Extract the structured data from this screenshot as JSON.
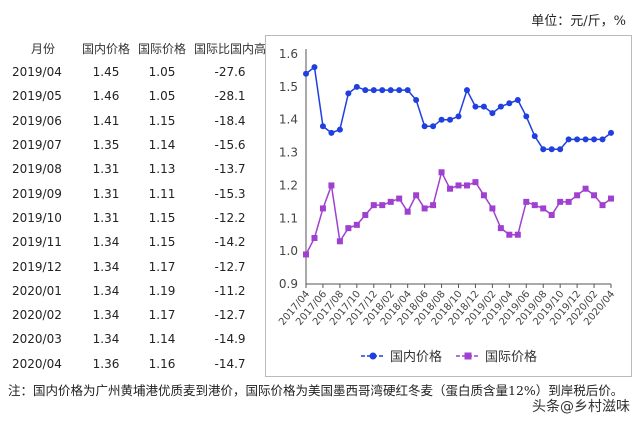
{
  "unit": "单位：元/斤，%",
  "table": {
    "headers": [
      "月份",
      "国内价格",
      "国际价格",
      "国际比国内高"
    ],
    "rows": [
      [
        "2019/04",
        "1.45",
        "1.05",
        "-27.6"
      ],
      [
        "2019/05",
        "1.46",
        "1.05",
        "-28.1"
      ],
      [
        "2019/06",
        "1.41",
        "1.15",
        "-18.4"
      ],
      [
        "2019/07",
        "1.35",
        "1.14",
        "-15.6"
      ],
      [
        "2019/08",
        "1.31",
        "1.13",
        "-13.7"
      ],
      [
        "2019/09",
        "1.31",
        "1.11",
        "-15.3"
      ],
      [
        "2019/10",
        "1.31",
        "1.15",
        "-12.2"
      ],
      [
        "2019/11",
        "1.34",
        "1.15",
        "-14.2"
      ],
      [
        "2019/12",
        "1.34",
        "1.17",
        "-12.7"
      ],
      [
        "2020/01",
        "1.34",
        "1.19",
        "-11.2"
      ],
      [
        "2020/02",
        "1.34",
        "1.17",
        "-12.7"
      ],
      [
        "2020/03",
        "1.34",
        "1.14",
        "-14.9"
      ],
      [
        "2020/04",
        "1.36",
        "1.16",
        "-14.7"
      ]
    ]
  },
  "chart_data": {
    "type": "line",
    "ylim": [
      0.9,
      1.6
    ],
    "yticks": [
      "0.9",
      "1.0",
      "1.1",
      "1.2",
      "1.3",
      "1.4",
      "1.5",
      "1.6"
    ],
    "xticklabels": [
      "2017/04",
      "2017/06",
      "2017/08",
      "2017/10",
      "2017/12",
      "2018/02",
      "2018/04",
      "2018/06",
      "2018/08",
      "2018/10",
      "2018/12",
      "2019/02",
      "2019/04",
      "2019/06",
      "2019/08",
      "2019/10",
      "2019/12",
      "2020/02",
      "2020/04"
    ],
    "legend": "bottom",
    "series": [
      {
        "name": "国内价格",
        "color": "#1f3fe0",
        "marker": "circle",
        "values": [
          1.54,
          1.56,
          1.38,
          1.36,
          1.37,
          1.48,
          1.5,
          1.49,
          1.49,
          1.49,
          1.49,
          1.49,
          1.49,
          1.46,
          1.38,
          1.38,
          1.4,
          1.4,
          1.41,
          1.49,
          1.44,
          1.44,
          1.42,
          1.44,
          1.45,
          1.46,
          1.41,
          1.35,
          1.31,
          1.31,
          1.31,
          1.34,
          1.34,
          1.34,
          1.34,
          1.34,
          1.36
        ]
      },
      {
        "name": "国际价格",
        "color": "#a040d0",
        "marker": "square",
        "values": [
          0.99,
          1.04,
          1.13,
          1.2,
          1.03,
          1.07,
          1.08,
          1.11,
          1.14,
          1.14,
          1.15,
          1.16,
          1.12,
          1.17,
          1.13,
          1.14,
          1.24,
          1.19,
          1.2,
          1.2,
          1.21,
          1.17,
          1.13,
          1.07,
          1.05,
          1.05,
          1.15,
          1.14,
          1.13,
          1.11,
          1.15,
          1.15,
          1.17,
          1.19,
          1.17,
          1.14,
          1.16
        ]
      }
    ]
  },
  "note": "注：国内价格为广州黄埔港优质麦到港价，国际价格为美国墨西哥湾硬红冬麦（蛋白质含量12%）到岸税后价。",
  "watermark": "头条@乡村滋味"
}
